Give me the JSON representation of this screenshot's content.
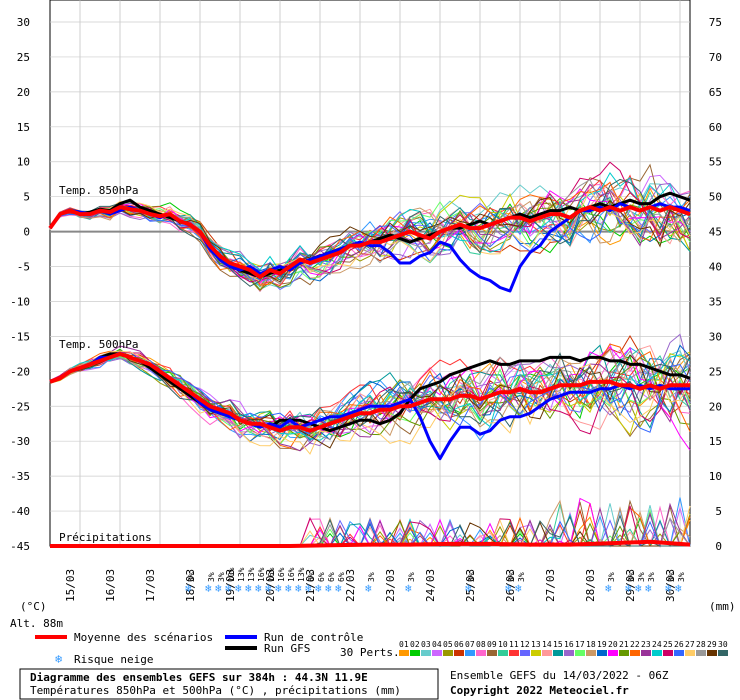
{
  "chart_data": {
    "type": "line",
    "title": "Diagramme des ensembles GEFS sur 384h : 44.3N 11.9E",
    "subtitle": "Températures 850hPa et 500hPa (°C) , précipitations (mm)",
    "run_info": "Ensemble GEFS du 14/03/2022 - 06Z",
    "copyright": "Copyright 2022 Meteociel.fr",
    "altitude": "Alt. 88m",
    "left_unit": "(°C)",
    "right_unit": "(mm)",
    "left_ticks": [
      "30",
      "25",
      "20",
      "15",
      "10",
      "5",
      "0",
      "-5",
      "-10",
      "-15",
      "-20",
      "-25",
      "-30",
      "-35",
      "-40",
      "-45"
    ],
    "right_ticks": [
      "75",
      "70",
      "65",
      "60",
      "55",
      "50",
      "45",
      "40",
      "35",
      "30",
      "25",
      "20",
      "15",
      "10",
      "5",
      "0"
    ],
    "x_labels": [
      "15/03",
      "16/03",
      "17/03",
      "18/03",
      "19/03",
      "20/03",
      "21/03",
      "22/03",
      "23/03",
      "24/03",
      "25/03",
      "26/03",
      "27/03",
      "28/03",
      "29/03",
      "30/03"
    ],
    "panel_labels": {
      "t850": "Temp. 850hPa",
      "t500": "Temp. 500hPa",
      "precip": "Précipitations"
    },
    "legend": {
      "mean": "Moyenne des scénarios",
      "control": "Run de contrôle",
      "gfs": "Run GFS",
      "snow": "Risque neige",
      "perts": "30 Perts.",
      "mean_color": "#ff0000",
      "control_color": "#0000ff",
      "gfs_color": "#000000"
    },
    "member_labels": [
      "01",
      "02",
      "03",
      "04",
      "05",
      "06",
      "07",
      "08",
      "09",
      "10",
      "11",
      "12",
      "13",
      "14",
      "15",
      "16",
      "17",
      "18",
      "19",
      "20",
      "21",
      "22",
      "23",
      "24",
      "25",
      "26",
      "27",
      "28",
      "29",
      "30"
    ],
    "member_colors": [
      "#ff9900",
      "#00cc00",
      "#66cccc",
      "#cc66ff",
      "#999900",
      "#cc3300",
      "#3399ff",
      "#ff66cc",
      "#996633",
      "#33cc99",
      "#ff3333",
      "#6666ff",
      "#cccc00",
      "#ff9999",
      "#009999",
      "#9966cc",
      "#66ff66",
      "#cc9966",
      "#0066cc",
      "#ff00ff",
      "#669900",
      "#ff6600",
      "#993399",
      "#00cccc",
      "#cc0066",
      "#3366ff",
      "#ffcc66",
      "#999999",
      "#663300",
      "#336666"
    ],
    "snow_labels": [
      "3%",
      "3%",
      "3%",
      "10%",
      "13%",
      "13%",
      "16%",
      "16%",
      "16%",
      "16%",
      "13%",
      "6%",
      "6%",
      "6%",
      "6%",
      "3%",
      "3%",
      "3%",
      "3%",
      "3%",
      "3%",
      "3%",
      "3%",
      "3%",
      "3%",
      "3%"
    ],
    "t850": {
      "x": [
        0,
        6,
        12,
        18,
        24,
        30,
        36,
        42,
        48,
        54,
        60,
        66,
        72,
        78,
        84,
        90,
        96,
        102,
        108,
        114,
        120,
        126,
        132,
        138,
        144,
        150,
        156,
        162,
        168,
        174,
        180,
        186,
        192,
        198,
        204,
        210,
        216,
        222,
        228,
        234,
        240,
        246,
        252,
        258,
        264,
        270,
        276,
        282,
        288,
        294,
        300,
        306,
        312,
        318,
        324,
        330,
        336,
        342,
        348,
        354,
        360,
        366,
        372,
        378,
        384
      ],
      "mean": [
        0.5,
        2.5,
        3,
        2.5,
        2.5,
        3,
        2.8,
        3.5,
        3.2,
        3,
        2.5,
        2.2,
        2.5,
        1.5,
        1,
        0,
        -2,
        -3.5,
        -4.5,
        -5,
        -5.5,
        -6.5,
        -5.5,
        -6,
        -5,
        -4,
        -4.5,
        -4,
        -3.5,
        -3,
        -2,
        -2,
        -1.5,
        -1.5,
        -1,
        -0.5,
        0,
        -0.5,
        -1,
        0,
        0.5,
        1,
        0.5,
        0.5,
        1,
        1.5,
        2,
        2,
        1.5,
        2,
        2.5,
        2.5,
        2,
        3,
        3.5,
        3,
        3.5,
        3,
        3.5,
        3,
        3.5,
        3,
        3.5,
        3,
        2.5
      ],
      "control": [
        0.5,
        2.5,
        3,
        2.8,
        2.5,
        3,
        2.5,
        3,
        3.5,
        3,
        2.5,
        2,
        2.5,
        1.5,
        1,
        0,
        -2.5,
        -4,
        -5,
        -5.5,
        -5,
        -6,
        -5.5,
        -5,
        -5.5,
        -4.5,
        -4,
        -3.5,
        -3,
        -2.5,
        -2,
        -1.5,
        -2,
        -2,
        -3,
        -4.5,
        -4.5,
        -3.5,
        -3,
        -1.5,
        -2,
        -4,
        -5.5,
        -6.5,
        -7,
        -8,
        -8.5,
        -5,
        -3,
        -2,
        0,
        1,
        2,
        3,
        3,
        3.5,
        3,
        4,
        3.5,
        3,
        3.5,
        4,
        3.5,
        3.5,
        3
      ],
      "gfs": [
        0.5,
        2.5,
        3,
        2.5,
        2.8,
        3.2,
        3,
        4,
        4.5,
        3.5,
        3,
        2.5,
        2,
        1.5,
        1,
        0,
        -2,
        -4,
        -5,
        -5.5,
        -6,
        -6.5,
        -6,
        -5.5,
        -5,
        -4.5,
        -4,
        -3.5,
        -3,
        -2.5,
        -2,
        -2,
        -1.5,
        -1,
        -0.5,
        -1,
        -1.5,
        -1,
        -0.5,
        0,
        0.5,
        0.5,
        1,
        1.5,
        1,
        1.5,
        2,
        2.5,
        2,
        2.5,
        3,
        3,
        3.5,
        3,
        3.5,
        4,
        3.5,
        4,
        4.5,
        4,
        4,
        5,
        5.5,
        5,
        4.5
      ]
    },
    "t500": {
      "x": [
        0,
        6,
        12,
        18,
        24,
        30,
        36,
        42,
        48,
        54,
        60,
        66,
        72,
        78,
        84,
        90,
        96,
        102,
        108,
        114,
        120,
        126,
        132,
        138,
        144,
        150,
        156,
        162,
        168,
        174,
        180,
        186,
        192,
        198,
        204,
        210,
        216,
        222,
        228,
        234,
        240,
        246,
        252,
        258,
        264,
        270,
        276,
        282,
        288,
        294,
        300,
        306,
        312,
        318,
        324,
        330,
        336,
        342,
        348,
        354,
        360,
        366,
        372,
        378,
        384
      ],
      "mean": [
        -21.5,
        -21,
        -20,
        -19.5,
        -19,
        -18.5,
        -18,
        -17.5,
        -18,
        -18.5,
        -19,
        -20,
        -21,
        -22,
        -23,
        -24,
        -25,
        -25.5,
        -26,
        -27,
        -27.5,
        -27.5,
        -28,
        -28.5,
        -28,
        -28,
        -28.5,
        -28,
        -27.5,
        -27,
        -26.5,
        -26,
        -26,
        -25.5,
        -25.5,
        -25,
        -25,
        -24.5,
        -24,
        -24,
        -24,
        -23.5,
        -23.5,
        -24,
        -23.5,
        -23,
        -23,
        -22.5,
        -23,
        -23,
        -22.5,
        -22,
        -22,
        -22,
        -21.5,
        -21.5,
        -21.5,
        -22,
        -22,
        -22.5,
        -22,
        -22.5,
        -22,
        -22,
        -22
      ],
      "control": [
        -21.5,
        -21,
        -20,
        -19.5,
        -19,
        -18,
        -18,
        -17.5,
        -18,
        -18.5,
        -19,
        -20,
        -21,
        -22,
        -23,
        -24.5,
        -25.5,
        -26,
        -26.5,
        -27,
        -27.5,
        -28,
        -27.5,
        -28,
        -27,
        -28,
        -27.5,
        -27,
        -26.5,
        -26.5,
        -26,
        -25.5,
        -25,
        -25,
        -25,
        -24.5,
        -24,
        -26.5,
        -30,
        -32.5,
        -30,
        -28,
        -28,
        -29,
        -28.5,
        -27,
        -26.5,
        -26.5,
        -26,
        -25,
        -24,
        -23.5,
        -23,
        -23,
        -23,
        -22.5,
        -22.5,
        -22,
        -22.5,
        -22,
        -22.5,
        -22,
        -22.5,
        -22.5,
        -22.5
      ],
      "gfs": [
        -21.5,
        -21,
        -20,
        -19.5,
        -19,
        -18,
        -17.5,
        -17.5,
        -18,
        -18.5,
        -19.5,
        -20.5,
        -21.5,
        -22.5,
        -23.5,
        -24.5,
        -25.5,
        -26,
        -26.5,
        -27,
        -27.5,
        -27.5,
        -28,
        -27,
        -27,
        -27,
        -27.5,
        -28,
        -28.5,
        -28,
        -27.5,
        -27,
        -27,
        -27.5,
        -27,
        -26,
        -24,
        -22.5,
        -22,
        -21.5,
        -20.5,
        -20,
        -19.5,
        -19,
        -18.5,
        -19,
        -19,
        -18.5,
        -18.5,
        -18.5,
        -18,
        -18,
        -18,
        -18.5,
        -18,
        -18,
        -18.5,
        -18.5,
        -19,
        -19,
        -19.5,
        -20,
        -20.5,
        -20.5,
        -21
      ]
    },
    "precip": {
      "x": [
        0,
        24,
        48,
        72,
        96,
        120,
        144,
        168,
        192,
        216,
        240,
        264,
        288,
        312,
        336,
        360,
        384
      ],
      "mean": [
        0,
        0,
        0,
        0,
        0,
        0,
        0,
        0.1,
        0.2,
        0.2,
        0.3,
        0.3,
        0.2,
        0.2,
        0.4,
        0.6,
        0.2
      ]
    },
    "left_range": [
      -45,
      30
    ],
    "x_range_hours": [
      0,
      384
    ],
    "grid": true
  }
}
